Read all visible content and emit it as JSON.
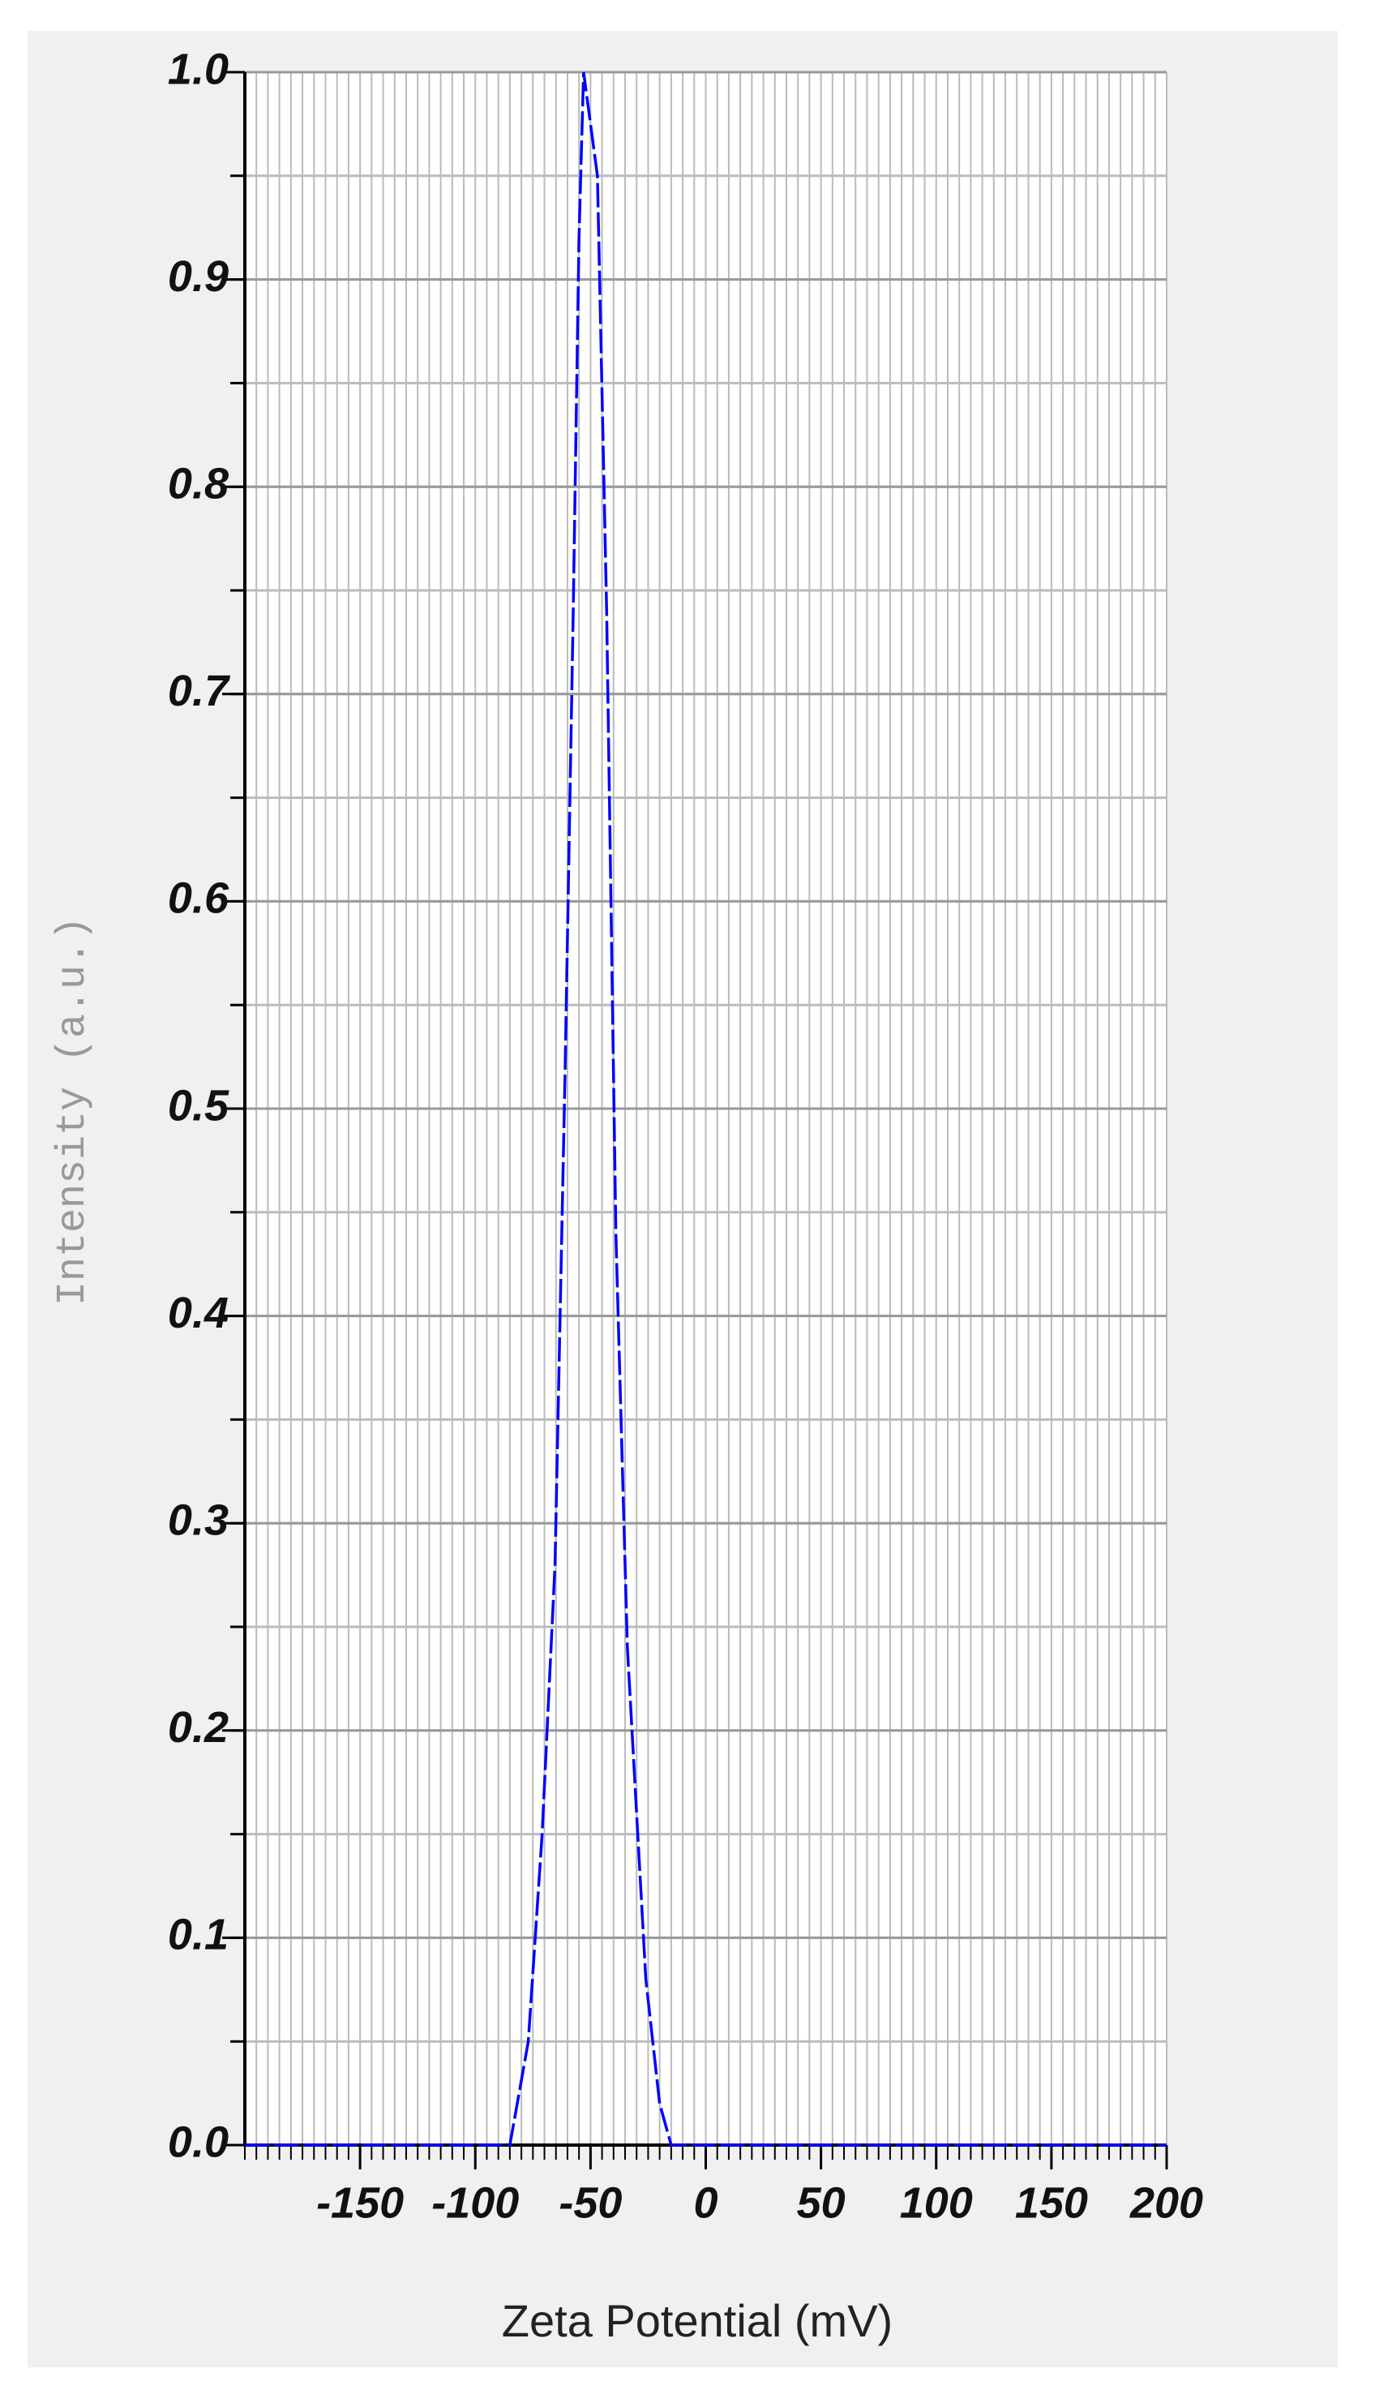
{
  "chart_data": {
    "type": "line",
    "xlabel": "Zeta Potential (mV)",
    "ylabel": "Intensity (a.u.)",
    "x": [
      -200,
      -85,
      -77,
      -71,
      -65.4,
      -61,
      -57.5,
      -55,
      -53,
      -47,
      -43,
      -39,
      -34,
      -26,
      -20,
      -15,
      200
    ],
    "series": [
      {
        "color": "#0000ff",
        "values": [
          0,
          0,
          0.05,
          0.15,
          0.28,
          0.52,
          0.74,
          0.92,
          1.0,
          0.95,
          0.74,
          0.44,
          0.24,
          0.08,
          0.02,
          0,
          0
        ]
      }
    ],
    "xlim": [
      -200,
      200
    ],
    "xticks": [
      -150,
      -100,
      -50,
      0,
      50,
      100,
      150,
      200
    ],
    "ylim": [
      0,
      1
    ],
    "yticks": [
      {
        "value": 0,
        "label": "0.0"
      },
      0.1,
      0.2,
      0.3,
      0.4,
      0.5,
      0.6,
      0.7,
      0.8,
      0.9,
      {
        "value": 1,
        "label": "1.0"
      }
    ],
    "x_minor_step": 5,
    "y_minor_step": 0.05,
    "grid": true
  }
}
